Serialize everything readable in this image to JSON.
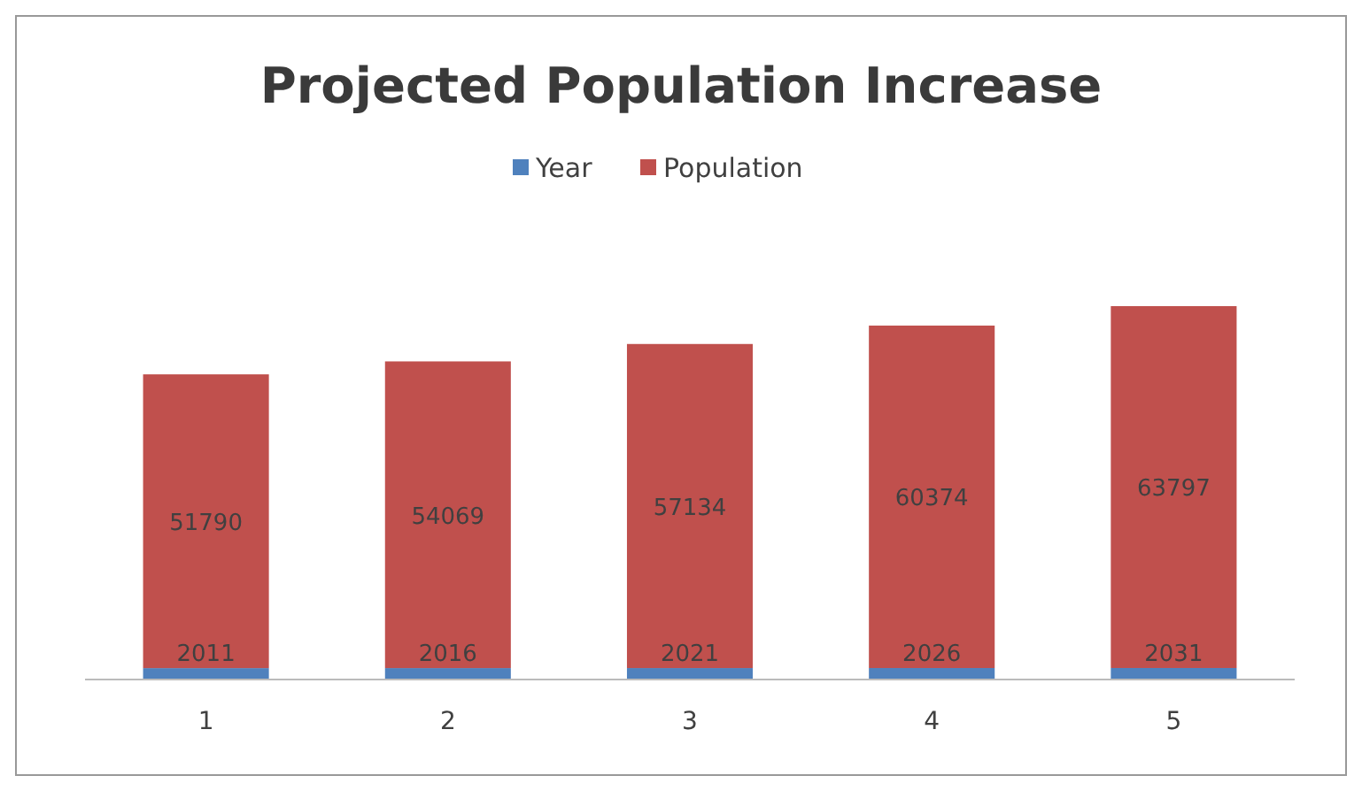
{
  "chart_data": {
    "type": "bar",
    "title": "Projected Population Increase",
    "categories": [
      "1",
      "2",
      "3",
      "4",
      "5"
    ],
    "stacked": true,
    "data_labels": true,
    "legend": "top",
    "series": [
      {
        "name": "Year",
        "color": "#4f81bd",
        "values": [
          2011,
          2016,
          2021,
          2026,
          2031
        ]
      },
      {
        "name": "Population",
        "color": "#c0504d",
        "values": [
          51790,
          54069,
          57134,
          60374,
          63797
        ]
      }
    ]
  }
}
